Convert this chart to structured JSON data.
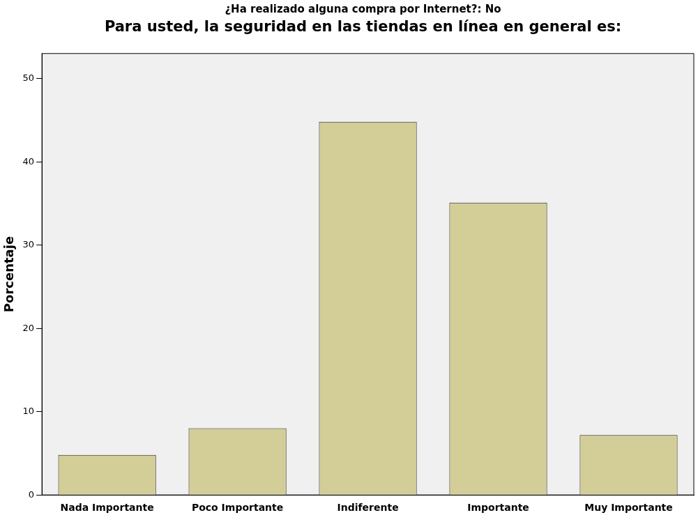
{
  "chart_data": {
    "type": "bar",
    "subtitle": "¿Ha realizado alguna compra por Internet?: No",
    "title": "Para usted, la seguridad en las tiendas en línea en general es:",
    "ylabel": "Porcentaje",
    "categories": [
      "Nada Importante",
      "Poco Importante",
      "Indiferente",
      "Importante",
      "Muy Importante"
    ],
    "values": [
      4.8,
      8.0,
      44.8,
      35.1,
      7.2
    ],
    "color": "#d3ce97",
    "ylim": [
      0,
      53
    ],
    "yticks": [
      0,
      10,
      20,
      30,
      40,
      50
    ],
    "grid": false,
    "legend": false
  }
}
